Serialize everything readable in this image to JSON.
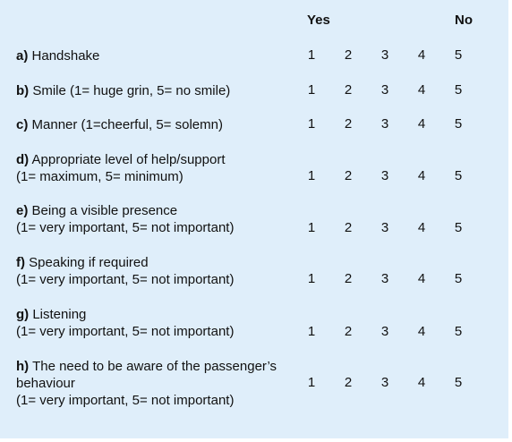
{
  "header": {
    "yes_label": "Yes",
    "no_label": "No"
  },
  "scale": [
    "1",
    "2",
    "3",
    "4",
    "5"
  ],
  "questions": [
    {
      "letter": "a)",
      "lines": [
        "Handshake"
      ]
    },
    {
      "letter": "b)",
      "lines": [
        "Smile (1= huge grin, 5= no smile)"
      ]
    },
    {
      "letter": "c)",
      "lines": [
        "Manner (1=cheerful, 5= solemn)"
      ]
    },
    {
      "letter": "d)",
      "lines": [
        "Appropriate level of help/support",
        "(1= maximum, 5= minimum)"
      ]
    },
    {
      "letter": "e)",
      "lines": [
        "Being a visible presence",
        "(1= very important, 5= not important)"
      ]
    },
    {
      "letter": "f)",
      "lines": [
        "Speaking if required",
        "(1= very important, 5= not important)"
      ]
    },
    {
      "letter": "g)",
      "lines": [
        "Listening",
        "(1= very important, 5= not important)"
      ]
    },
    {
      "letter": "h)",
      "lines": [
        "The need to be aware of the passenger’s",
        "behaviour",
        "(1= very important, 5= not important)"
      ]
    }
  ]
}
